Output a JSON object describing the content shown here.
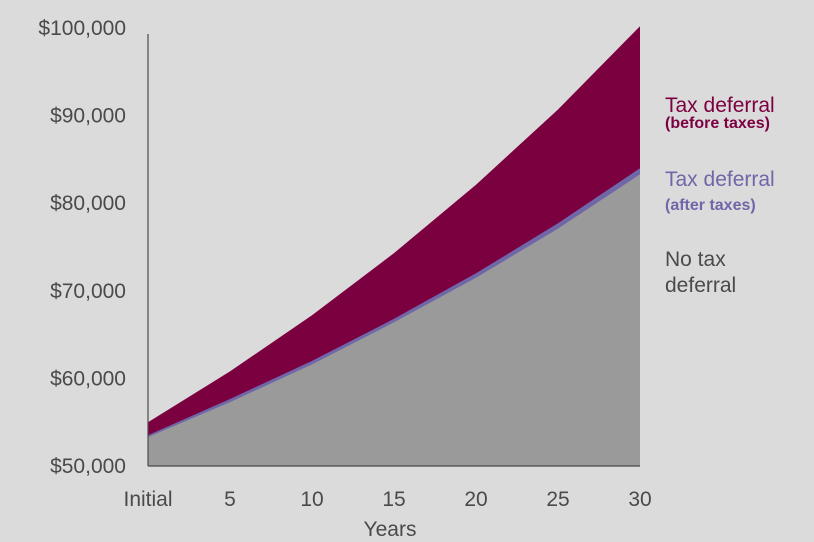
{
  "chart_data": {
    "type": "area",
    "title": "",
    "xlabel": "Years",
    "ylabel": "",
    "x": [
      0,
      5,
      10,
      15,
      20,
      25,
      30
    ],
    "x_tick_labels": [
      "Initial",
      "5",
      "10",
      "15",
      "20",
      "25",
      "30"
    ],
    "y_tick_labels": [
      "$50,000",
      "$60,000",
      "$70,000",
      "$80,000",
      "$90,000",
      "$100,000"
    ],
    "y_ticks": [
      50000,
      60000,
      70000,
      80000,
      90000,
      100000
    ],
    "ylim": [
      50000,
      100000
    ],
    "xlim": [
      0,
      30
    ],
    "grid": false,
    "legend_placement": "right",
    "series": [
      {
        "name": "No tax deferral",
        "values": [
          53300,
          57300,
          61600,
          66400,
          71500,
          77100,
          83300
        ],
        "color": "#9b9a9a"
      },
      {
        "name": "Tax deferral (after taxes)",
        "values": [
          53500,
          57650,
          62000,
          66800,
          72000,
          77700,
          84000
        ],
        "color": "#6f67a8"
      },
      {
        "name": "Tax deferral (before taxes)",
        "values": [
          55000,
          60800,
          67200,
          74300,
          82100,
          90700,
          100200
        ],
        "color": "#7b0040"
      }
    ],
    "legend": [
      {
        "main": "Tax deferral",
        "sub": "(before taxes)",
        "color": "#7b0040"
      },
      {
        "main": "Tax deferral",
        "sub": "(after taxes)",
        "color": "#6f67a8"
      },
      {
        "main": "No tax",
        "sub": "deferral",
        "color": "#4a4a4a"
      }
    ]
  }
}
